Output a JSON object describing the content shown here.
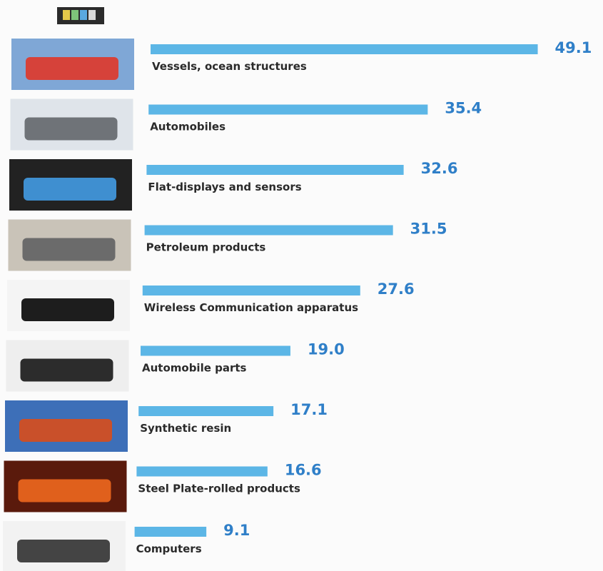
{
  "chart_data": {
    "type": "bar",
    "categories": [
      "Vessels, ocean structures",
      "Automobiles",
      "Flat-displays and sensors",
      "Petroleum products",
      "Wireless Communication apparatus",
      "Automobile parts",
      "Synthetic resin",
      "Steel Plate-rolled products",
      "Computers"
    ],
    "values": [
      49.1,
      35.4,
      32.6,
      31.5,
      27.6,
      19.0,
      17.1,
      16.6,
      9.1
    ],
    "value_labels": [
      "49.1",
      "35.4",
      "32.6",
      "31.5",
      "27.6",
      "19.0",
      "17.1",
      "16.6",
      "9.1"
    ],
    "color": "#5cb6e6"
  }
}
